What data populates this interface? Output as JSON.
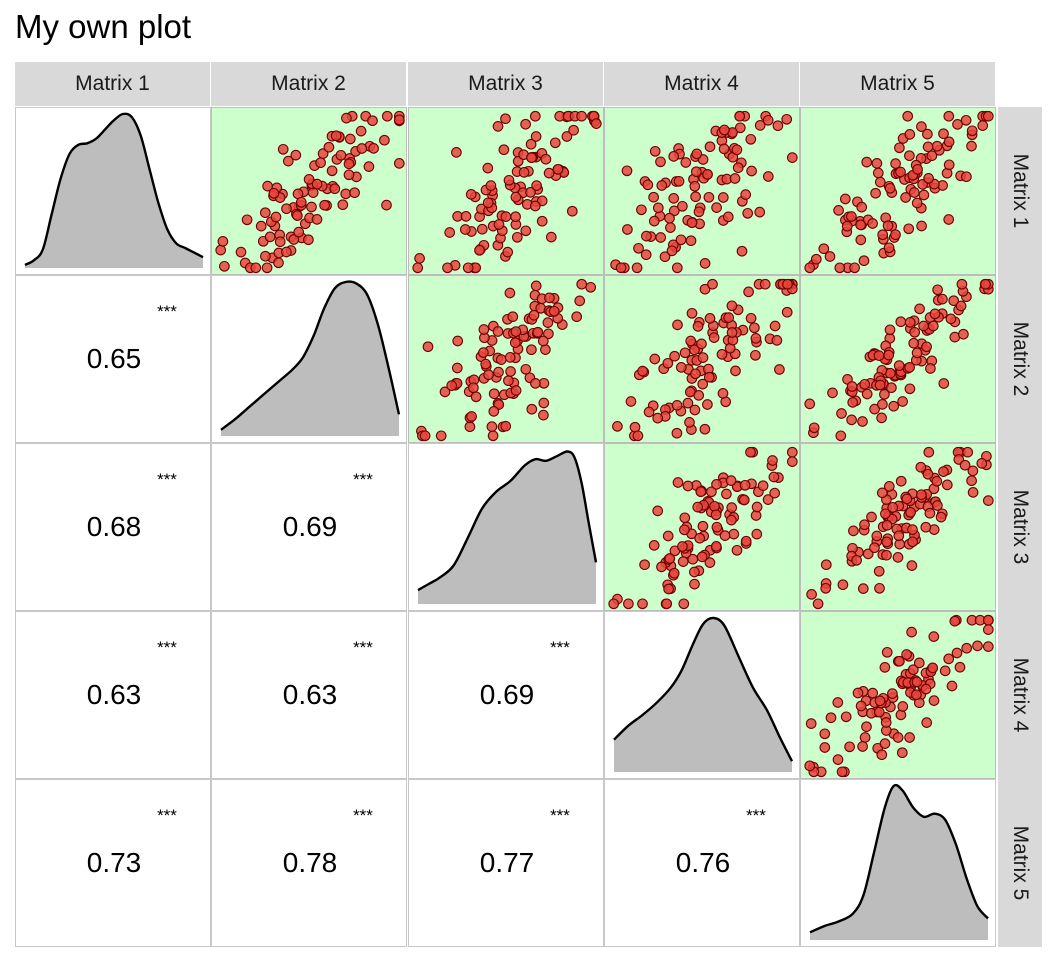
{
  "title": "My own plot",
  "colors": {
    "scatter_bg": "#ccffcc",
    "point_fill": "#e8473d",
    "point_stroke": "#6b0000",
    "density_fill": "#bdbdbd",
    "strip_bg": "#d9d9d9"
  },
  "chart_data": {
    "type": "scatter-matrix",
    "variables": [
      "Matrix 1",
      "Matrix 2",
      "Matrix 3",
      "Matrix 4",
      "Matrix 5"
    ],
    "upper": "scatter",
    "diagonal": "density",
    "lower": "correlation",
    "correlations": [
      {
        "row": 1,
        "col": 0,
        "value": "0.65",
        "stars": "***"
      },
      {
        "row": 2,
        "col": 0,
        "value": "0.68",
        "stars": "***"
      },
      {
        "row": 2,
        "col": 1,
        "value": "0.69",
        "stars": "***"
      },
      {
        "row": 3,
        "col": 0,
        "value": "0.63",
        "stars": "***"
      },
      {
        "row": 3,
        "col": 1,
        "value": "0.63",
        "stars": "***"
      },
      {
        "row": 3,
        "col": 2,
        "value": "0.69",
        "stars": "***"
      },
      {
        "row": 4,
        "col": 0,
        "value": "0.73",
        "stars": "***"
      },
      {
        "row": 4,
        "col": 1,
        "value": "0.78",
        "stars": "***"
      },
      {
        "row": 4,
        "col": 2,
        "value": "0.77",
        "stars": "***"
      },
      {
        "row": 4,
        "col": 3,
        "value": "0.76",
        "stars": "***"
      }
    ],
    "densities": [
      [
        [
          0.0,
          0.02
        ],
        [
          0.05,
          0.05
        ],
        [
          0.1,
          0.12
        ],
        [
          0.15,
          0.35
        ],
        [
          0.2,
          0.58
        ],
        [
          0.25,
          0.74
        ],
        [
          0.3,
          0.8
        ],
        [
          0.35,
          0.81
        ],
        [
          0.4,
          0.84
        ],
        [
          0.45,
          0.9
        ],
        [
          0.5,
          0.96
        ],
        [
          0.55,
          1.0
        ],
        [
          0.6,
          0.98
        ],
        [
          0.65,
          0.86
        ],
        [
          0.7,
          0.64
        ],
        [
          0.75,
          0.42
        ],
        [
          0.8,
          0.25
        ],
        [
          0.85,
          0.16
        ],
        [
          0.9,
          0.13
        ],
        [
          0.95,
          0.1
        ],
        [
          1.0,
          0.07
        ]
      ],
      [
        [
          0.0,
          0.04
        ],
        [
          0.08,
          0.11
        ],
        [
          0.16,
          0.19
        ],
        [
          0.24,
          0.27
        ],
        [
          0.32,
          0.35
        ],
        [
          0.4,
          0.43
        ],
        [
          0.46,
          0.51
        ],
        [
          0.52,
          0.65
        ],
        [
          0.58,
          0.83
        ],
        [
          0.64,
          0.96
        ],
        [
          0.7,
          1.0
        ],
        [
          0.76,
          0.99
        ],
        [
          0.82,
          0.92
        ],
        [
          0.88,
          0.73
        ],
        [
          0.94,
          0.45
        ],
        [
          1.0,
          0.14
        ]
      ],
      [
        [
          0.0,
          0.09
        ],
        [
          0.06,
          0.13
        ],
        [
          0.12,
          0.17
        ],
        [
          0.2,
          0.25
        ],
        [
          0.28,
          0.43
        ],
        [
          0.36,
          0.62
        ],
        [
          0.44,
          0.73
        ],
        [
          0.52,
          0.8
        ],
        [
          0.6,
          0.9
        ],
        [
          0.66,
          0.94
        ],
        [
          0.72,
          0.93
        ],
        [
          0.78,
          0.96
        ],
        [
          0.84,
          0.99
        ],
        [
          0.88,
          0.95
        ],
        [
          0.92,
          0.78
        ],
        [
          0.96,
          0.52
        ],
        [
          1.0,
          0.27
        ]
      ],
      [
        [
          0.0,
          0.21
        ],
        [
          0.08,
          0.3
        ],
        [
          0.16,
          0.37
        ],
        [
          0.24,
          0.45
        ],
        [
          0.32,
          0.55
        ],
        [
          0.38,
          0.66
        ],
        [
          0.44,
          0.82
        ],
        [
          0.5,
          0.96
        ],
        [
          0.56,
          1.0
        ],
        [
          0.62,
          0.95
        ],
        [
          0.7,
          0.75
        ],
        [
          0.78,
          0.55
        ],
        [
          0.86,
          0.4
        ],
        [
          0.93,
          0.23
        ],
        [
          1.0,
          0.07
        ]
      ],
      [
        [
          0.0,
          0.05
        ],
        [
          0.08,
          0.09
        ],
        [
          0.16,
          0.12
        ],
        [
          0.24,
          0.17
        ],
        [
          0.3,
          0.29
        ],
        [
          0.36,
          0.57
        ],
        [
          0.42,
          0.86
        ],
        [
          0.47,
          1.0
        ],
        [
          0.52,
          0.97
        ],
        [
          0.58,
          0.86
        ],
        [
          0.64,
          0.8
        ],
        [
          0.7,
          0.82
        ],
        [
          0.76,
          0.78
        ],
        [
          0.82,
          0.62
        ],
        [
          0.88,
          0.4
        ],
        [
          0.94,
          0.22
        ],
        [
          1.0,
          0.14
        ]
      ]
    ],
    "scatter_sets": [
      {
        "row": 0,
        "col": 1,
        "seed": 11,
        "spread": 0.18,
        "lo": [
          0.04,
          0.03
        ],
        "hi": [
          0.98,
          0.95
        ]
      },
      {
        "row": 0,
        "col": 2,
        "seed": 23,
        "spread": 0.2,
        "lo": [
          0.03,
          0.08
        ],
        "hi": [
          0.97,
          0.95
        ]
      },
      {
        "row": 0,
        "col": 3,
        "seed": 37,
        "spread": 0.22,
        "lo": [
          0.03,
          0.04
        ],
        "hi": [
          0.95,
          0.96
        ]
      },
      {
        "row": 0,
        "col": 4,
        "seed": 41,
        "spread": 0.16,
        "lo": [
          0.04,
          0.04
        ],
        "hi": [
          0.95,
          0.92
        ]
      },
      {
        "row": 1,
        "col": 2,
        "seed": 53,
        "spread": 0.19,
        "lo": [
          0.04,
          0.05
        ],
        "hi": [
          0.95,
          0.96
        ]
      },
      {
        "row": 1,
        "col": 3,
        "seed": 67,
        "spread": 0.2,
        "lo": [
          0.04,
          0.08
        ],
        "hi": [
          0.95,
          0.94
        ]
      },
      {
        "row": 1,
        "col": 4,
        "seed": 71,
        "spread": 0.15,
        "lo": [
          0.04,
          0.04
        ],
        "hi": [
          0.96,
          0.95
        ]
      },
      {
        "row": 2,
        "col": 3,
        "seed": 83,
        "spread": 0.17,
        "lo": [
          0.04,
          0.05
        ],
        "hi": [
          0.98,
          0.92
        ]
      },
      {
        "row": 2,
        "col": 4,
        "seed": 97,
        "spread": 0.16,
        "lo": [
          0.03,
          0.08
        ],
        "hi": [
          0.97,
          0.9
        ]
      },
      {
        "row": 3,
        "col": 4,
        "seed": 103,
        "spread": 0.16,
        "lo": [
          0.04,
          0.05
        ],
        "hi": [
          0.98,
          0.92
        ]
      }
    ]
  }
}
